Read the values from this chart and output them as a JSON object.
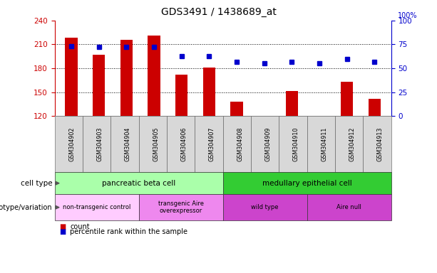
{
  "title": "GDS3491 / 1438689_at",
  "samples": [
    "GSM304902",
    "GSM304903",
    "GSM304904",
    "GSM304905",
    "GSM304906",
    "GSM304907",
    "GSM304908",
    "GSM304909",
    "GSM304910",
    "GSM304911",
    "GSM304912",
    "GSM304913"
  ],
  "counts": [
    218,
    197,
    216,
    221,
    172,
    181,
    138,
    120,
    151,
    120,
    163,
    142
  ],
  "percentile_ranks": [
    73,
    72,
    72,
    72,
    63,
    63,
    57,
    55,
    57,
    55,
    60,
    57
  ],
  "ylim_left": [
    120,
    240
  ],
  "ylim_right": [
    0,
    100
  ],
  "yticks_left": [
    120,
    150,
    180,
    210,
    240
  ],
  "yticks_right": [
    0,
    25,
    50,
    75,
    100
  ],
  "bar_color": "#cc0000",
  "dot_color": "#0000cc",
  "bar_bottom": 120,
  "cell_type_groups": [
    {
      "label": "pancreatic beta cell",
      "start": 0,
      "end": 6,
      "color": "#aaffaa"
    },
    {
      "label": "medullary epithelial cell",
      "start": 6,
      "end": 12,
      "color": "#33cc33"
    }
  ],
  "genotype_groups": [
    {
      "label": "non-transgenic control",
      "start": 0,
      "end": 3,
      "color": "#ffccff"
    },
    {
      "label": "transgenic Aire\noverexpressor",
      "start": 3,
      "end": 6,
      "color": "#ee99ee"
    },
    {
      "label": "wild type",
      "start": 6,
      "end": 9,
      "color": "#cc44cc"
    },
    {
      "label": "Aire null",
      "start": 9,
      "end": 12,
      "color": "#cc44cc"
    }
  ],
  "left_axis_color": "#cc0000",
  "right_axis_color": "#0000cc",
  "background_color": "#ffffff",
  "tick_bg_color": "#d8d8d8",
  "legend_count_color": "#cc0000",
  "legend_percentile_color": "#0000cc"
}
